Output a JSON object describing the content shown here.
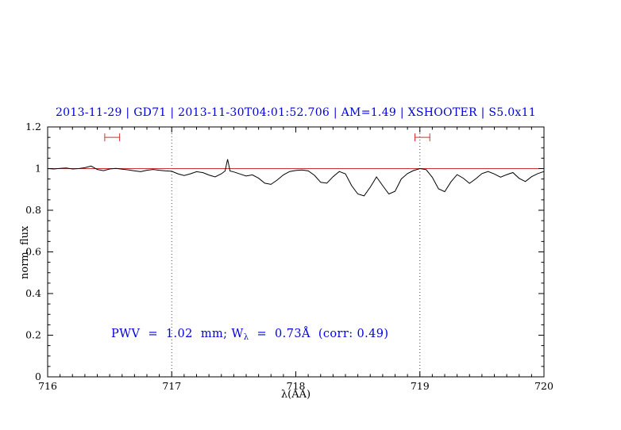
{
  "header": {
    "title": "2013-11-29 | GD71 | 2013-11-30T04:01:52.706 | AM=1.49 | XSHOOTER | S5.0x11",
    "color": "#0000dd"
  },
  "annotation": {
    "pre": "PWV  =  1.02  mm; W",
    "sub": "λ",
    "post": "  =  0.73Å  (corr: 0.49)",
    "color": "#0000dd"
  },
  "chart_data": {
    "type": "line",
    "title": "2013-11-29 | GD71 | 2013-11-30T04:01:52.706 | AM=1.49 | XSHOOTER | S5.0x11",
    "xlabel": "λ(AA)",
    "ylabel": "norm. flux",
    "xlim": [
      716,
      720
    ],
    "ylim": [
      0,
      1.2
    ],
    "x_ticks": [
      716,
      717,
      718,
      719,
      720
    ],
    "x_minor_step": 0.1,
    "y_ticks": [
      0,
      0.2,
      0.4,
      0.6,
      0.8,
      1,
      1.2
    ],
    "y_tick_labels": [
      "0",
      "0.2",
      "0.4",
      "0.6",
      "0.8",
      "1",
      "1.2"
    ],
    "y_minor_step": 0.05,
    "grid": false,
    "legend": null,
    "reference_line": {
      "y": 1.0,
      "color": "#cc3333"
    },
    "vertical_dotted_lines": [
      717,
      719
    ],
    "marker_color": "#cc3333",
    "interval_markers": [
      {
        "x1": 716.46,
        "x2": 716.58,
        "y": 1.15
      },
      {
        "x1": 718.96,
        "x2": 719.08,
        "y": 1.15
      }
    ],
    "series": [
      {
        "name": "spectrum",
        "color": "#000000",
        "x": [
          716.0,
          716.05,
          716.1,
          716.15,
          716.2,
          716.25,
          716.3,
          716.35,
          716.4,
          716.45,
          716.5,
          716.55,
          716.6,
          716.65,
          716.7,
          716.75,
          716.8,
          716.85,
          716.9,
          716.95,
          717.0,
          717.05,
          717.1,
          717.15,
          717.2,
          717.25,
          717.3,
          717.35,
          717.4,
          717.43,
          717.45,
          717.47,
          717.5,
          717.55,
          717.6,
          717.65,
          717.7,
          717.75,
          717.8,
          717.85,
          717.9,
          717.95,
          718.0,
          718.05,
          718.1,
          718.15,
          718.2,
          718.25,
          718.3,
          718.35,
          718.4,
          718.45,
          718.5,
          718.55,
          718.6,
          718.65,
          718.7,
          718.75,
          718.8,
          718.85,
          718.9,
          718.95,
          719.0,
          719.05,
          719.1,
          719.15,
          719.2,
          719.25,
          719.3,
          719.35,
          719.4,
          719.45,
          719.5,
          719.55,
          719.6,
          719.65,
          719.7,
          719.75,
          719.8,
          719.85,
          719.9,
          719.95,
          720.0
        ],
        "y": [
          1.0,
          0.998,
          1.001,
          1.003,
          0.998,
          1.0,
          1.004,
          1.012,
          0.996,
          0.99,
          0.998,
          1.001,
          0.997,
          0.994,
          0.989,
          0.985,
          0.992,
          0.996,
          0.992,
          0.989,
          0.987,
          0.975,
          0.967,
          0.975,
          0.985,
          0.981,
          0.969,
          0.96,
          0.975,
          0.988,
          1.045,
          0.988,
          0.984,
          0.974,
          0.964,
          0.97,
          0.954,
          0.93,
          0.924,
          0.945,
          0.97,
          0.986,
          0.991,
          0.993,
          0.989,
          0.968,
          0.934,
          0.93,
          0.961,
          0.986,
          0.975,
          0.918,
          0.878,
          0.869,
          0.911,
          0.96,
          0.918,
          0.878,
          0.891,
          0.95,
          0.976,
          0.991,
          1.0,
          0.995,
          0.958,
          0.903,
          0.889,
          0.936,
          0.971,
          0.954,
          0.929,
          0.951,
          0.976,
          0.986,
          0.974,
          0.959,
          0.971,
          0.981,
          0.953,
          0.938,
          0.961,
          0.976,
          0.986
        ]
      }
    ]
  }
}
